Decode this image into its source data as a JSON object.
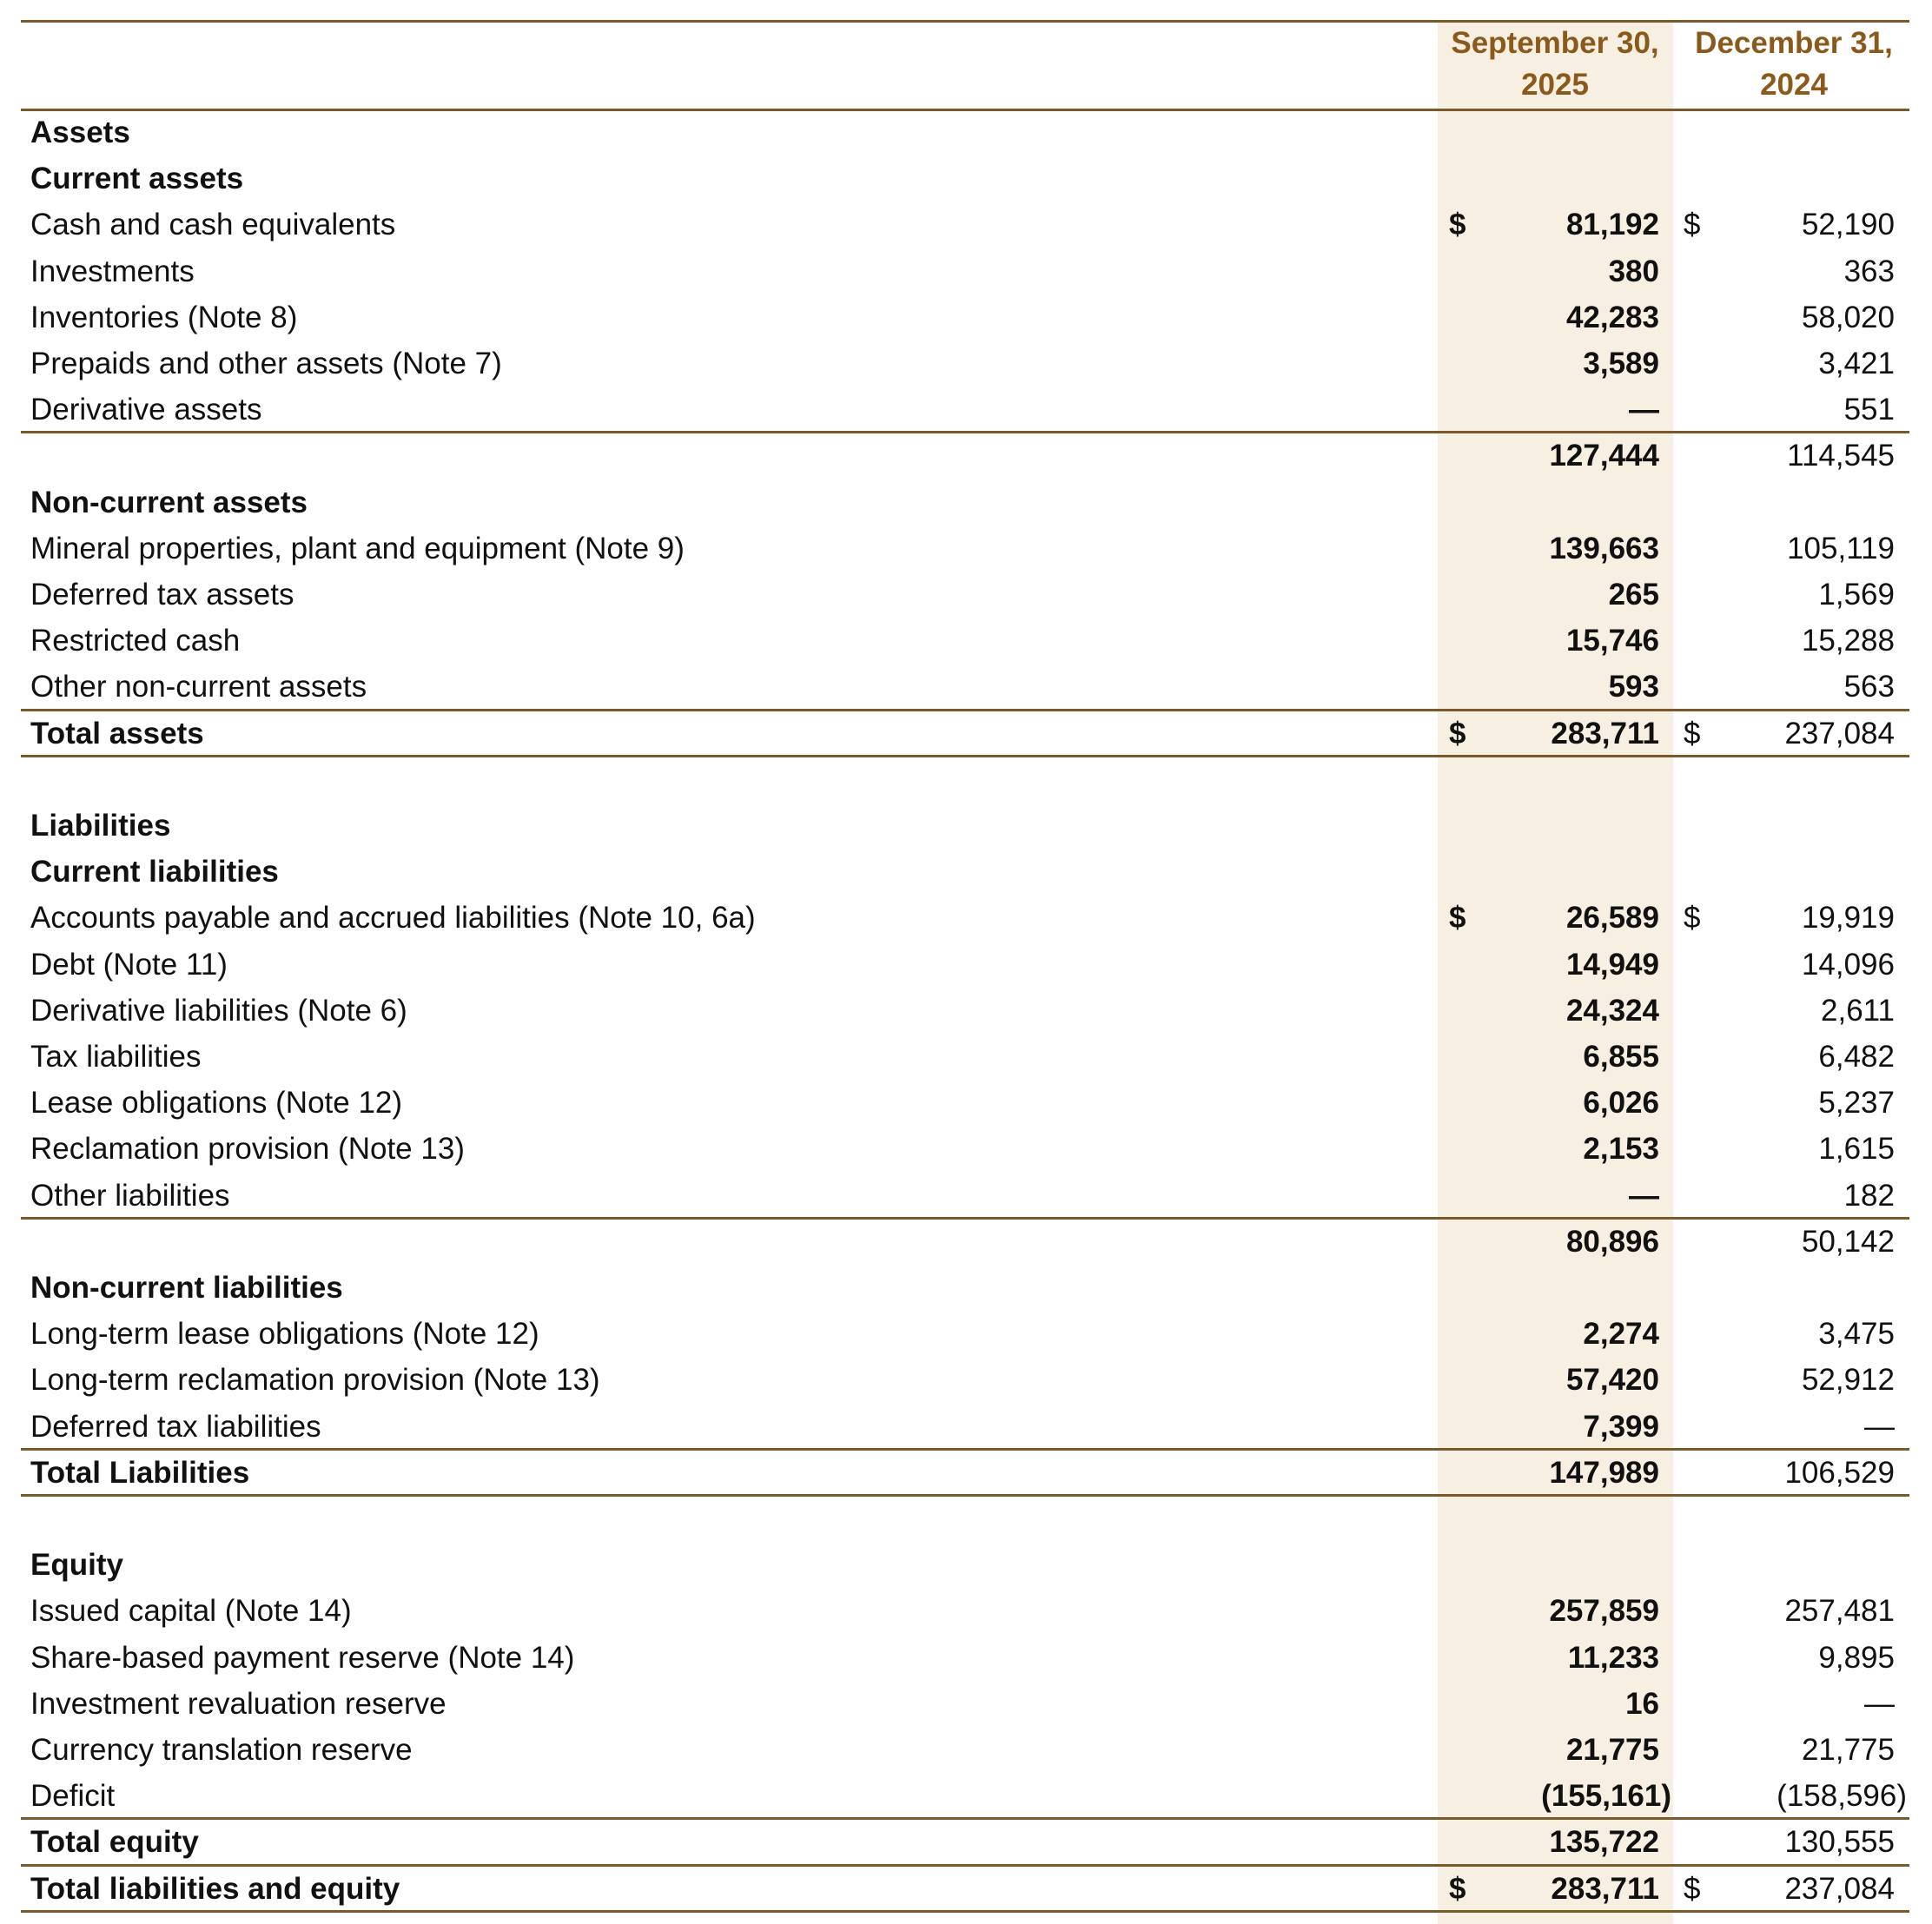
{
  "header": {
    "columns": [
      "September 30, 2025",
      "December 31, 2024"
    ]
  },
  "rows": [
    {
      "label": "Assets"
    },
    {
      "label": "Current assets"
    },
    {
      "label": "Cash and cash equivalents",
      "sep": {
        "currency": "$",
        "value": "81,192"
      },
      "dec": {
        "currency": "$",
        "value": "52,190"
      }
    },
    {
      "label": "Investments",
      "sep": {
        "value": "380"
      },
      "dec": {
        "value": "363"
      }
    },
    {
      "label": "Inventories (Note 8)",
      "sep": {
        "value": "42,283"
      },
      "dec": {
        "value": "58,020"
      }
    },
    {
      "label": "Prepaids and other assets (Note 7)",
      "sep": {
        "value": "3,589"
      },
      "dec": {
        "value": "3,421"
      }
    },
    {
      "label": "Derivative assets",
      "sep": {
        "value": "—"
      },
      "dec": {
        "value": "551"
      }
    },
    {
      "sep": {
        "value": "127,444"
      },
      "dec": {
        "value": "114,545"
      }
    },
    {
      "label": "Non-current assets"
    },
    {
      "label": "Mineral properties, plant and equipment (Note 9)",
      "sep": {
        "value": "139,663"
      },
      "dec": {
        "value": "105,119"
      }
    },
    {
      "label": "Deferred tax assets",
      "sep": {
        "value": "265"
      },
      "dec": {
        "value": "1,569"
      }
    },
    {
      "label": "Restricted cash",
      "sep": {
        "value": "15,746"
      },
      "dec": {
        "value": "15,288"
      }
    },
    {
      "label": "Other non-current assets",
      "sep": {
        "value": "593"
      },
      "dec": {
        "value": "563"
      }
    },
    {
      "label": "Total assets",
      "sep": {
        "currency": "$",
        "value": "283,711"
      },
      "dec": {
        "currency": "$",
        "value": "237,084"
      }
    },
    {
      "label": "Liabilities"
    },
    {
      "label": "Current liabilities"
    },
    {
      "label": "Accounts payable and accrued liabilities (Note 10, 6a)",
      "sep": {
        "currency": "$",
        "value": "26,589"
      },
      "dec": {
        "currency": "$",
        "value": "19,919"
      }
    },
    {
      "label": "Debt (Note 11)",
      "sep": {
        "value": "14,949"
      },
      "dec": {
        "value": "14,096"
      }
    },
    {
      "label": "Derivative liabilities (Note 6)",
      "sep": {
        "value": "24,324"
      },
      "dec": {
        "value": "2,611"
      }
    },
    {
      "label": "Tax liabilities",
      "sep": {
        "value": "6,855"
      },
      "dec": {
        "value": "6,482"
      }
    },
    {
      "label": "Lease obligations (Note 12)",
      "sep": {
        "value": "6,026"
      },
      "dec": {
        "value": "5,237"
      }
    },
    {
      "label": "Reclamation provision (Note 13)",
      "sep": {
        "value": "2,153"
      },
      "dec": {
        "value": "1,615"
      }
    },
    {
      "label": "Other liabilities",
      "sep": {
        "value": "—"
      },
      "dec": {
        "value": "182"
      }
    },
    {
      "sep": {
        "value": "80,896"
      },
      "dec": {
        "value": "50,142"
      }
    },
    {
      "label": "Non-current liabilities"
    },
    {
      "label": "Long-term lease obligations (Note 12)",
      "sep": {
        "value": "2,274"
      },
      "dec": {
        "value": "3,475"
      }
    },
    {
      "label": "Long-term reclamation provision (Note 13)",
      "sep": {
        "value": "57,420"
      },
      "dec": {
        "value": "52,912"
      }
    },
    {
      "label": "Deferred tax liabilities",
      "sep": {
        "value": "7,399"
      },
      "dec": {
        "value": "—"
      }
    },
    {
      "label": "Total Liabilities",
      "sep": {
        "value": "147,989"
      },
      "dec": {
        "value": "106,529"
      }
    },
    {
      "label": "Equity"
    },
    {
      "label": "Issued capital (Note 14)",
      "sep": {
        "value": "257,859"
      },
      "dec": {
        "value": "257,481"
      }
    },
    {
      "label": "Share-based payment reserve (Note 14)",
      "sep": {
        "value": "11,233"
      },
      "dec": {
        "value": "9,895"
      }
    },
    {
      "label": "Investment revaluation reserve",
      "sep": {
        "value": "16"
      },
      "dec": {
        "value": "—"
      }
    },
    {
      "label": "Currency translation reserve",
      "sep": {
        "value": "21,775"
      },
      "dec": {
        "value": "21,775"
      }
    },
    {
      "label": "Deficit",
      "sep": {
        "value": "(155,161)"
      },
      "dec": {
        "value": "(158,596)"
      }
    },
    {
      "label": "Total equity",
      "sep": {
        "value": "135,722"
      },
      "dec": {
        "value": "130,555"
      }
    },
    {
      "label": "Total liabilities and equity",
      "sep": {
        "currency": "$",
        "value": "283,711"
      },
      "dec": {
        "currency": "$",
        "value": "237,084"
      }
    }
  ]
}
